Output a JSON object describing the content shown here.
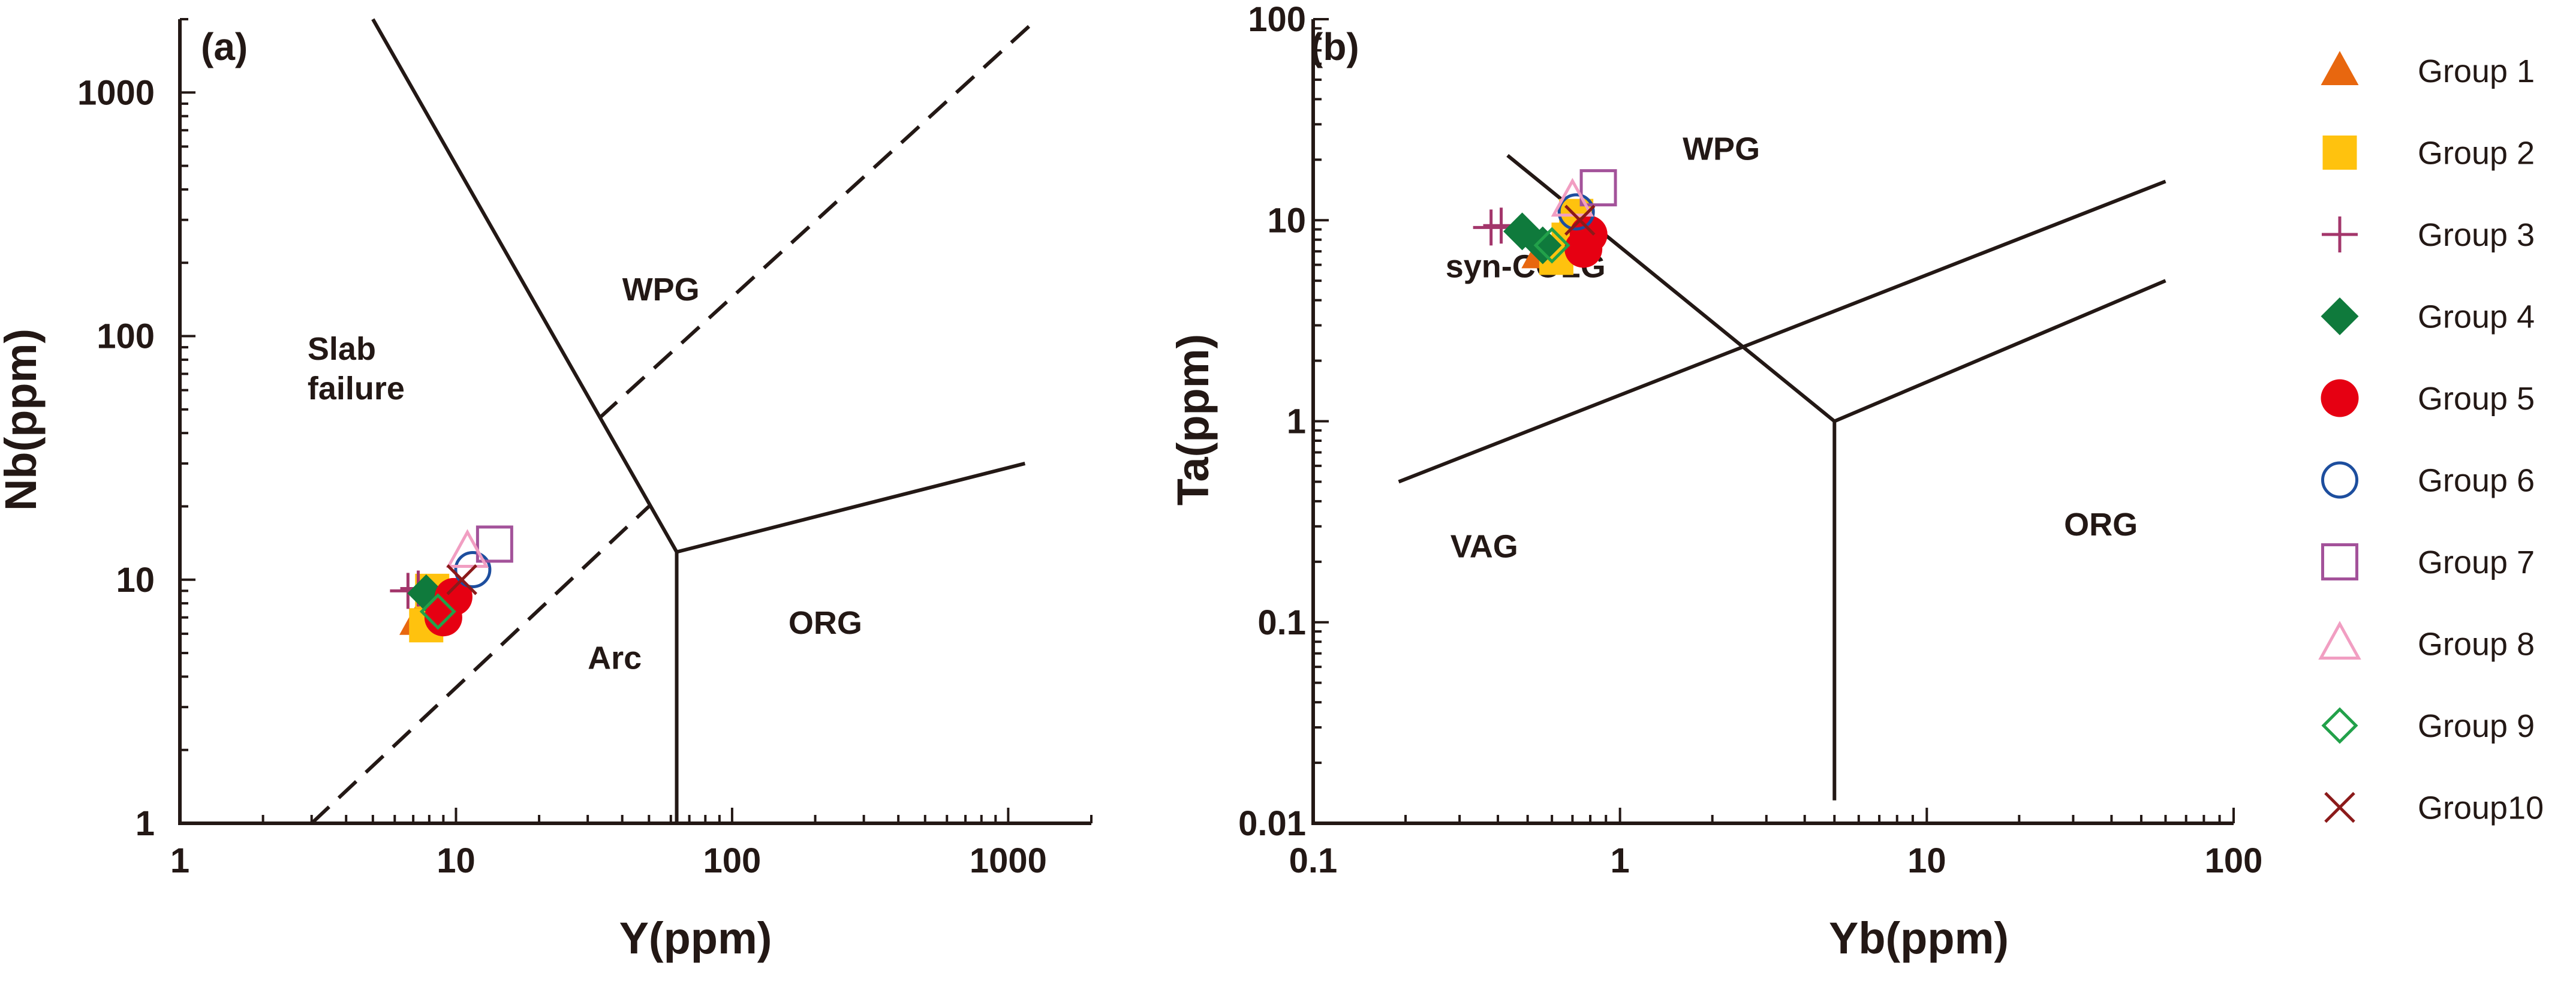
{
  "chart_data": [
    {
      "type": "scatter",
      "panel": "(a)",
      "xlabel": "Y(ppm)",
      "ylabel": "Nb(ppm)",
      "xscale": "log",
      "yscale": "log",
      "xlim": [
        1,
        2000
      ],
      "ylim": [
        1,
        2000
      ],
      "x_tick_labels": [
        "1",
        "10",
        "100",
        "1000"
      ],
      "y_tick_labels": [
        "1",
        "10",
        "100",
        "1000"
      ],
      "field_labels": [
        {
          "text": "WPG",
          "x": 40,
          "y": 140
        },
        {
          "text": "Slab",
          "x": 2.9,
          "y": 80
        },
        {
          "text": "failure",
          "x": 2.9,
          "y": 55
        },
        {
          "text": "Arc",
          "x": 30,
          "y": 4.3
        },
        {
          "text": "ORG",
          "x": 160,
          "y": 6.0
        }
      ],
      "boundaries": [
        {
          "style": "solid",
          "points": [
            [
              5,
              2000
            ],
            [
              63,
              13
            ],
            [
              63,
              1
            ]
          ]
        },
        {
          "style": "solid",
          "points": [
            [
              63,
              13
            ],
            [
              1150,
              30
            ]
          ]
        },
        {
          "style": "dashed",
          "points": [
            [
              3,
              1
            ],
            [
              50,
              20
            ]
          ]
        },
        {
          "style": "dashed",
          "points": [
            [
              33,
              46
            ],
            [
              1270,
              2000
            ]
          ]
        }
      ],
      "series": [
        {
          "name": "Group 1",
          "x": [
            7.3
          ],
          "y": [
            6.8
          ]
        },
        {
          "name": "Group 2",
          "x": [
            7.8,
            8.2
          ],
          "y": [
            6.5,
            9.0
          ]
        },
        {
          "name": "Group 3",
          "x": [
            6.7,
            7.3
          ],
          "y": [
            9.0,
            9.2
          ]
        },
        {
          "name": "Group 4",
          "x": [
            7.8
          ],
          "y": [
            8.8
          ]
        },
        {
          "name": "Group 5",
          "x": [
            9.0,
            9.8
          ],
          "y": [
            7.0,
            8.5
          ]
        },
        {
          "name": "Group 6",
          "x": [
            11.5
          ],
          "y": [
            11.0
          ]
        },
        {
          "name": "Group 7",
          "x": [
            13.8
          ],
          "y": [
            14.0
          ]
        },
        {
          "name": "Group 8",
          "x": [
            11.0
          ],
          "y": [
            13.0
          ]
        },
        {
          "name": "Group 9",
          "x": [
            8.6
          ],
          "y": [
            7.4
          ]
        },
        {
          "name": "Group 10",
          "x": [
            10.5
          ],
          "y": [
            10.0
          ]
        }
      ]
    },
    {
      "type": "scatter",
      "panel": "(b)",
      "xlabel": "Yb(ppm)",
      "ylabel": "Ta(ppm)",
      "xscale": "log",
      "yscale": "log",
      "xlim": [
        0.1,
        100
      ],
      "ylim": [
        0.01,
        100
      ],
      "x_tick_labels": [
        "0.1",
        "1",
        "10",
        "100"
      ],
      "y_tick_labels": [
        "0.01",
        "0.1",
        "1",
        "10",
        "100"
      ],
      "field_labels": [
        {
          "text": "WPG",
          "x": 1.6,
          "y": 20
        },
        {
          "text": "syn-COLG",
          "x": 0.27,
          "y": 5.2
        },
        {
          "text": "VAG",
          "x": 0.28,
          "y": 0.21
        },
        {
          "text": "ORG",
          "x": 28,
          "y": 0.27
        }
      ],
      "boundaries": [
        {
          "style": "solid",
          "points": [
            [
              0.43,
              21
            ],
            [
              5,
              1
            ],
            [
              5,
              0.013
            ]
          ]
        },
        {
          "style": "solid",
          "points": [
            [
              0.19,
              0.5
            ],
            [
              60,
              15.6
            ]
          ]
        },
        {
          "style": "solid",
          "points": [
            [
              5,
              1
            ],
            [
              60,
              5
            ]
          ]
        }
      ],
      "series": [
        {
          "name": "Group 1",
          "x": [
            0.55
          ],
          "y": [
            6.8
          ]
        },
        {
          "name": "Group 2",
          "x": [
            0.62,
            0.68,
            0.72
          ],
          "y": [
            6.5,
            8.0,
            10.5
          ]
        },
        {
          "name": "Group 3",
          "x": [
            0.38,
            0.41
          ],
          "y": [
            9.2,
            9.4
          ]
        },
        {
          "name": "Group 4",
          "x": [
            0.48,
            0.56
          ],
          "y": [
            8.8,
            7.5
          ]
        },
        {
          "name": "Group 5",
          "x": [
            0.76,
            0.79
          ],
          "y": [
            7.2,
            8.5
          ]
        },
        {
          "name": "Group 6",
          "x": [
            0.72
          ],
          "y": [
            11.0
          ]
        },
        {
          "name": "Group 7",
          "x": [
            0.85
          ],
          "y": [
            14.5
          ]
        },
        {
          "name": "Group 8",
          "x": [
            0.7
          ],
          "y": [
            12.5
          ]
        },
        {
          "name": "Group 9",
          "x": [
            0.6
          ],
          "y": [
            7.5
          ]
        },
        {
          "name": "Group 10",
          "x": [
            0.74
          ],
          "y": [
            10.0
          ]
        }
      ]
    }
  ],
  "legend": [
    {
      "label": "Group 1",
      "marker": "triangle-filled",
      "color": "#E8670F"
    },
    {
      "label": "Group 2",
      "marker": "square-filled",
      "color": "#FFC20E"
    },
    {
      "label": "Group 3",
      "marker": "plus",
      "color": "#A3366B"
    },
    {
      "label": "Group 4",
      "marker": "diamond-filled",
      "color": "#0F7A3C"
    },
    {
      "label": "Group 5",
      "marker": "circle-filled",
      "color": "#E60012"
    },
    {
      "label": "Group 6",
      "marker": "circle-open",
      "color": "#1D4E9E"
    },
    {
      "label": "Group 7",
      "marker": "square-open",
      "color": "#A3529A"
    },
    {
      "label": "Group 8",
      "marker": "triangle-open",
      "color": "#F19EC2"
    },
    {
      "label": "Group 9",
      "marker": "diamond-open",
      "color": "#22A14A"
    },
    {
      "label": "Group10",
      "marker": "cross",
      "color": "#8B1A1A"
    }
  ]
}
